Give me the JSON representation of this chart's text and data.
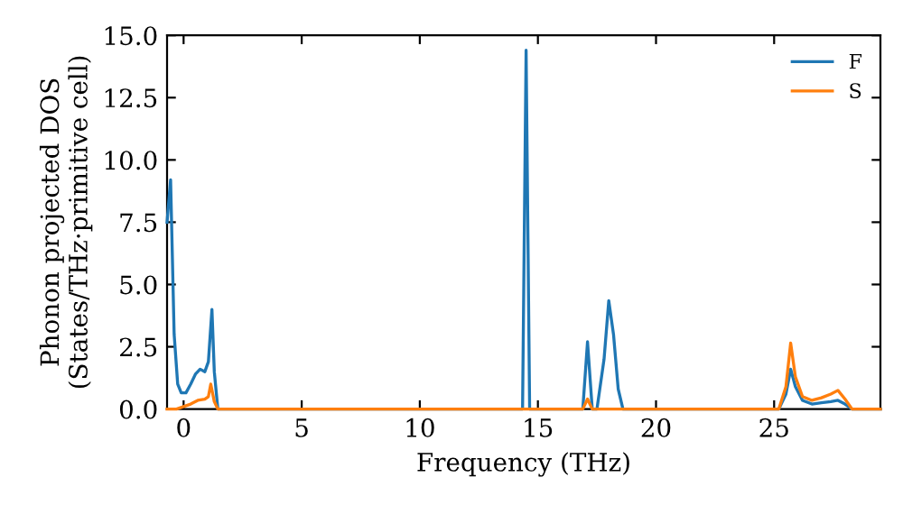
{
  "chart_data": {
    "type": "line",
    "xlabel": "Frequency (THz)",
    "ylabel": "Phonon projected DOS\n(States/THz·primitive cell)",
    "xlim": [
      -0.7,
      29.5
    ],
    "ylim": [
      0,
      15
    ],
    "xticks": [
      0,
      5,
      10,
      15,
      20,
      25
    ],
    "yticks": [
      {
        "value": 0,
        "label": "0.0"
      },
      {
        "value": 2.5,
        "label": "2.5"
      },
      {
        "value": 5,
        "label": "5.0"
      },
      {
        "value": 7.5,
        "label": "7.5"
      },
      {
        "value": 10,
        "label": "10.0"
      },
      {
        "value": 12.5,
        "label": "12.5"
      },
      {
        "value": 15,
        "label": "15.0"
      }
    ],
    "legend": "top right",
    "grid": false,
    "series": [
      {
        "name": "F",
        "color": "#1f77b4",
        "x": [
          -0.7,
          -0.55,
          -0.4,
          -0.25,
          -0.1,
          0.1,
          0.3,
          0.5,
          0.7,
          0.9,
          1.05,
          1.2,
          1.3,
          1.45,
          14.2,
          14.35,
          14.5,
          14.65,
          14.8,
          16.9,
          17.1,
          17.3,
          17.5,
          17.8,
          18.0,
          18.2,
          18.4,
          18.6,
          25.2,
          25.5,
          25.7,
          25.9,
          26.2,
          26.6,
          27.0,
          27.4,
          27.7,
          28.0,
          28.3,
          29.5
        ],
        "values": [
          7.5,
          9.2,
          3.0,
          1.0,
          0.65,
          0.65,
          1.0,
          1.4,
          1.6,
          1.5,
          1.9,
          4.0,
          1.5,
          0,
          0,
          0,
          14.4,
          0,
          0,
          0,
          2.7,
          0,
          0,
          2.0,
          4.35,
          3.0,
          0.8,
          0,
          0,
          0.6,
          1.6,
          0.9,
          0.35,
          0.2,
          0.25,
          0.3,
          0.35,
          0.2,
          0,
          0
        ]
      },
      {
        "name": "S",
        "color": "#ff7f0e",
        "x": [
          -0.7,
          -0.3,
          0.0,
          0.3,
          0.6,
          0.9,
          1.05,
          1.15,
          1.3,
          1.45,
          16.9,
          17.1,
          17.3,
          25.2,
          25.5,
          25.7,
          25.9,
          26.2,
          26.6,
          27.0,
          27.4,
          27.7,
          28.0,
          28.3,
          29.5
        ],
        "values": [
          0,
          0,
          0.1,
          0.2,
          0.35,
          0.4,
          0.5,
          1.0,
          0.3,
          0,
          0,
          0.4,
          0,
          0,
          0.9,
          2.65,
          1.3,
          0.5,
          0.35,
          0.45,
          0.6,
          0.75,
          0.4,
          0,
          0
        ]
      }
    ]
  }
}
